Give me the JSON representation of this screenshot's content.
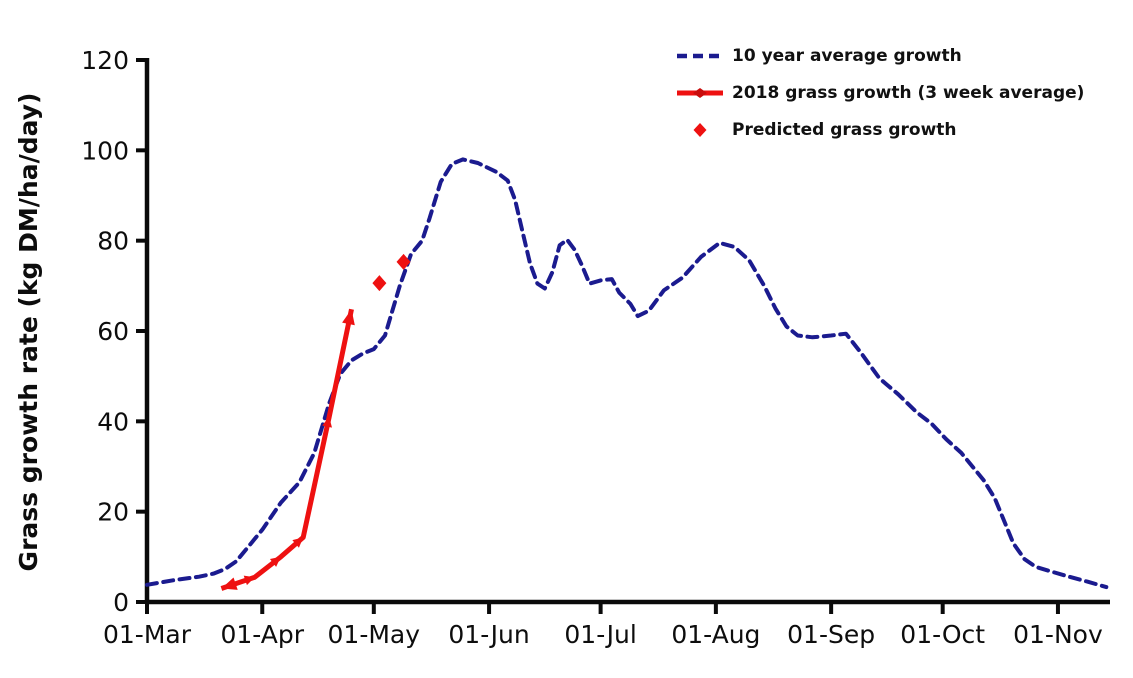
{
  "figure": {
    "background": "#ffffff",
    "axis_color": "#0a0a0a",
    "navy": "#1b1b8f",
    "red": "#ee1111"
  },
  "chart_data": {
    "type": "line",
    "title": "",
    "xlabel": "",
    "ylabel": "Grass growth rate (kg DM/ha/day)",
    "ylim": [
      0,
      120
    ],
    "yticks": [
      0,
      20,
      40,
      60,
      80,
      100,
      120
    ],
    "grid": "off",
    "legend_position": "top-right",
    "x_axis": {
      "unit": "days since 01-Mar",
      "domain_days": [
        0,
        259
      ],
      "tick_labels": [
        "01-Mar",
        "01-Apr",
        "01-May",
        "01-Jun",
        "01-Jul",
        "01-Aug",
        "01-Sep",
        "01-Oct",
        "01-Nov"
      ],
      "tick_day_offsets": [
        0,
        31,
        61,
        92,
        122,
        153,
        184,
        214,
        245
      ]
    },
    "series": [
      {
        "name": "10 year average growth",
        "type": "line",
        "style": "dashed",
        "color": "#1b1b8f",
        "points": [
          [
            0,
            3.8
          ],
          [
            7,
            4.8
          ],
          [
            14,
            5.6
          ],
          [
            18,
            6.3
          ],
          [
            21,
            7.3
          ],
          [
            24,
            9
          ],
          [
            27,
            12
          ],
          [
            31,
            16
          ],
          [
            36,
            22
          ],
          [
            41,
            26.5
          ],
          [
            45,
            33
          ],
          [
            49,
            44
          ],
          [
            52,
            50.5
          ],
          [
            55,
            53.5
          ],
          [
            58,
            55
          ],
          [
            61,
            56
          ],
          [
            64,
            59
          ],
          [
            68,
            70
          ],
          [
            71,
            77
          ],
          [
            74,
            80
          ],
          [
            76,
            85
          ],
          [
            79,
            93
          ],
          [
            82,
            97
          ],
          [
            85,
            98
          ],
          [
            89,
            97.2
          ],
          [
            94,
            95.2
          ],
          [
            97,
            93.3
          ],
          [
            99,
            89
          ],
          [
            101,
            82
          ],
          [
            103,
            75
          ],
          [
            105,
            70.5
          ],
          [
            107,
            69.4
          ],
          [
            109,
            73
          ],
          [
            111,
            79
          ],
          [
            113,
            80.2
          ],
          [
            115,
            78
          ],
          [
            117,
            74.5
          ],
          [
            119,
            70.5
          ],
          [
            122,
            71.2
          ],
          [
            125,
            71.5
          ],
          [
            127,
            68.5
          ],
          [
            130,
            66
          ],
          [
            132,
            63.3
          ],
          [
            135,
            64.5
          ],
          [
            139,
            69
          ],
          [
            144,
            71.8
          ],
          [
            149,
            76.4
          ],
          [
            154,
            79.5
          ],
          [
            158,
            78.6
          ],
          [
            162,
            75.6
          ],
          [
            166,
            70
          ],
          [
            169,
            65
          ],
          [
            172,
            61
          ],
          [
            175,
            59
          ],
          [
            179,
            58.6
          ],
          [
            184,
            59
          ],
          [
            188,
            59.4
          ],
          [
            192,
            55.2
          ],
          [
            197,
            49.5
          ],
          [
            202,
            46
          ],
          [
            207,
            42
          ],
          [
            211,
            39.5
          ],
          [
            215,
            36
          ],
          [
            219,
            33
          ],
          [
            222,
            30
          ],
          [
            225,
            27
          ],
          [
            228,
            23
          ],
          [
            231,
            17
          ],
          [
            233,
            13
          ],
          [
            236,
            9.5
          ],
          [
            239,
            7.8
          ],
          [
            243,
            6.8
          ],
          [
            248,
            5.6
          ],
          [
            253,
            4.5
          ],
          [
            258,
            3.3
          ]
        ]
      },
      {
        "name": "2018 grass growth (3 week average)",
        "type": "line",
        "style": "solid-arrow",
        "color": "#ee1111",
        "points": [
          [
            20,
            3
          ],
          [
            29,
            5.5
          ],
          [
            36,
            10
          ],
          [
            42,
            14.3
          ],
          [
            49,
            41
          ],
          [
            55,
            64.8
          ]
        ]
      },
      {
        "name": "Predicted grass growth",
        "type": "scatter",
        "marker": "diamond",
        "color": "#ee1111",
        "points": [
          [
            62.5,
            70.6
          ],
          [
            69,
            75.3
          ]
        ]
      }
    ]
  }
}
